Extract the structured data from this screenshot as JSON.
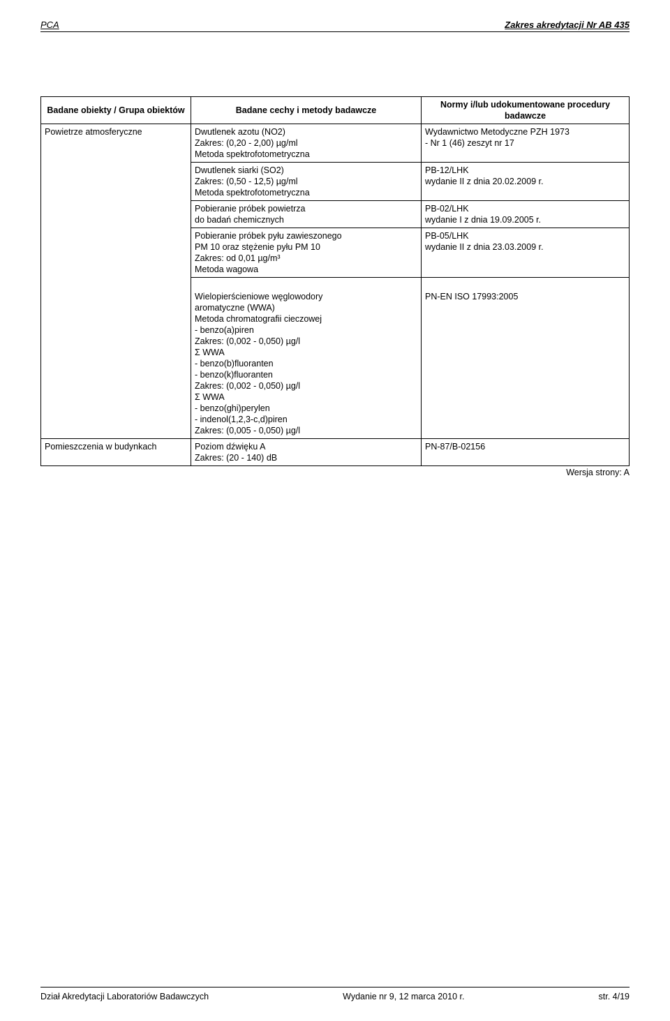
{
  "header": {
    "left": "PCA",
    "right": "Zakres akredytacji Nr AB 435"
  },
  "table": {
    "headers": {
      "col1": "Badane obiekty / Grupa obiektów",
      "col2": "Badane cechy i metody badawcze",
      "col3": "Normy i/lub udokumentowane procedury badawcze"
    },
    "rows": [
      {
        "c1": "Powietrze atmosferyczne",
        "c2": "Dwutlenek azotu (NO2)\nZakres: (0,20 - 2,00) µg/ml\nMetoda spektrofotometryczna",
        "c3": "Wydawnictwo Metodyczne PZH 1973\n- Nr 1 (46) zeszyt nr 17"
      },
      {
        "c1": "",
        "c2": "Dwutlenek siarki (SO2)\nZakres: (0,50 - 12,5) µg/ml\nMetoda spektrofotometryczna",
        "c3": "PB-12/LHK\nwydanie II z dnia 20.02.2009 r."
      },
      {
        "c1": "",
        "c2": "Pobieranie próbek powietrza\ndo badań chemicznych",
        "c3": "PB-02/LHK\nwydanie I z dnia 19.09.2005 r."
      },
      {
        "c1": "",
        "c2": "Pobieranie próbek pyłu zawieszonego\nPM 10 oraz stężenie pyłu PM 10\nZakres: od 0,01 µg/m³\nMetoda wagowa",
        "c3": "PB-05/LHK\nwydanie II z dnia 23.03.2009 r."
      },
      {
        "c1": "",
        "c2": "\nWielopierścieniowe węglowodory\naromatyczne (WWA)\nMetoda chromatografii cieczowej\n- benzo(a)piren\n Zakres: (0,002 - 0,050) µg/l\nΣ WWA\n- benzo(b)fluoranten\n- benzo(k)fluoranten\nZakres: (0,002 - 0,050) µg/l\nΣ WWA\n- benzo(ghi)perylen\n- indenol(1,2,3-c,d)piren\nZakres: (0,005 - 0,050) µg/l",
        "c3": "\nPN-EN ISO 17993:2005"
      },
      {
        "c1": "Pomieszczenia w budynkach",
        "c2": "Poziom dźwięku A\nZakres: (20 - 140) dB",
        "c3": "PN-87/B-02156"
      }
    ]
  },
  "version_line": "Wersja strony: A",
  "footer": {
    "left": "Dział Akredytacji Laboratoriów Badawczych",
    "center": "Wydanie nr 9, 12 marca 2010 r.",
    "right": "str. 4/19"
  }
}
